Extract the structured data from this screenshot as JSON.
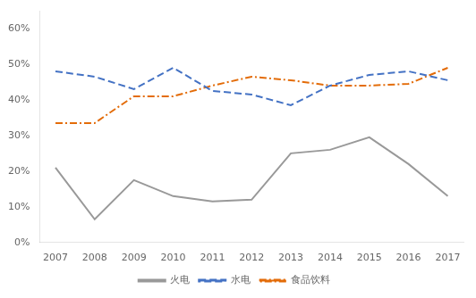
{
  "chart_data": {
    "type": "line",
    "x": [
      2007,
      2008,
      2009,
      2010,
      2011,
      2012,
      2013,
      2014,
      2015,
      2016,
      2017
    ],
    "series": [
      {
        "name": "火电",
        "color": "#999999",
        "line_style": "solid",
        "values": [
          0.21,
          0.065,
          0.175,
          0.13,
          0.115,
          0.12,
          0.25,
          0.26,
          0.295,
          0.22,
          0.13
        ]
      },
      {
        "name": "水电",
        "color": "#4472C4",
        "line_style": "dashed",
        "values": [
          0.48,
          0.465,
          0.43,
          0.49,
          0.425,
          0.415,
          0.385,
          0.44,
          0.47,
          0.48,
          0.455
        ]
      },
      {
        "name": "食品饮料",
        "color": "#E36C09",
        "line_style": "dashdot",
        "values": [
          0.335,
          0.335,
          0.41,
          0.41,
          0.44,
          0.465,
          0.455,
          0.44,
          0.44,
          0.445,
          0.49
        ]
      }
    ],
    "xlim": [
      2006.6,
      2017.4
    ],
    "xticks": [
      2007,
      2008,
      2009,
      2010,
      2011,
      2012,
      2013,
      2014,
      2015,
      2016,
      2017
    ],
    "ylim": [
      0.0,
      0.65
    ],
    "yticks": [
      {
        "value": 0.0,
        "label": "0%"
      },
      {
        "value": 0.1,
        "label": "10%"
      },
      {
        "value": 0.2,
        "label": "20%"
      },
      {
        "value": 0.3,
        "label": "30%"
      },
      {
        "value": 0.4,
        "label": "40%"
      },
      {
        "value": 0.5,
        "label": "50%"
      },
      {
        "value": 0.6,
        "label": "60%"
      }
    ],
    "grid": false,
    "legend": "bottom"
  }
}
